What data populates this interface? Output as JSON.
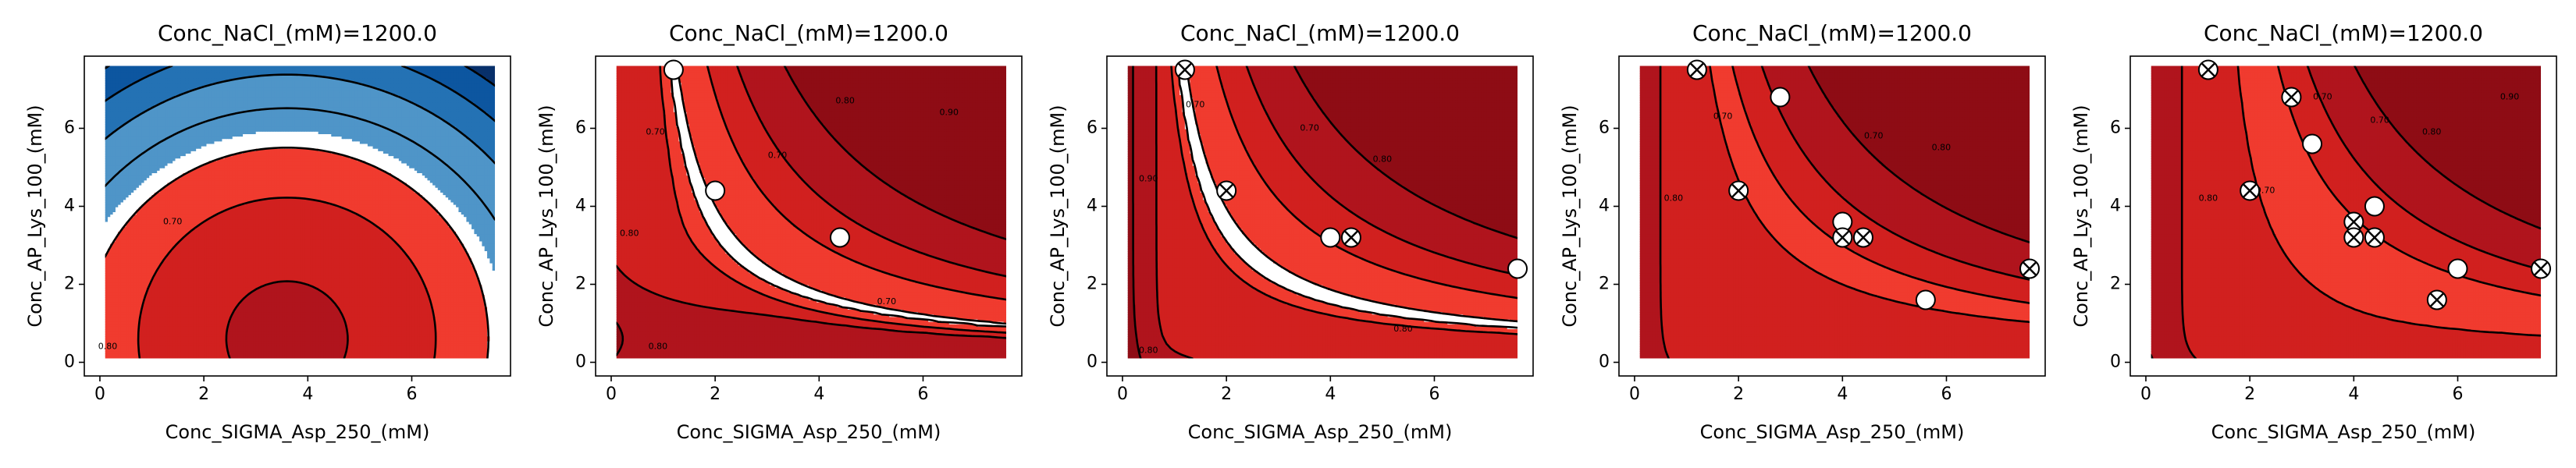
{
  "figure": {
    "palette": {
      "red_1": "#8e0c15",
      "red_2": "#b0141d",
      "red_3": "#d1201f",
      "red_4": "#f03b2f",
      "blue_1": "#4f95c8",
      "blue_2": "#2472b4",
      "blue_3": "#0d56a0",
      "blue_4": "#08306b",
      "marker_face": "#ffffff",
      "marker_edge": "#000000",
      "boundary_line": "#3b0a45"
    }
  },
  "chart_data": [
    {
      "type": "contour",
      "title": "Conc_NaCl_(mM)=1200.0",
      "xlabel": "Conc_SIGMA_Asp_250_(mM)",
      "ylabel": "Conc_AP_Lys_100_(mM)",
      "xlim": [
        -0.3,
        7.9
      ],
      "ylim": [
        -0.35,
        7.85
      ],
      "xticks": [
        0,
        2,
        4,
        6
      ],
      "yticks": [
        0,
        2,
        4,
        6
      ],
      "xtick_labels": [
        "0",
        "2",
        "4",
        "6"
      ],
      "ytick_labels": [
        "0",
        "2",
        "4",
        "6"
      ],
      "contour_labels": [
        {
          "text": "0.70",
          "x": 1.4,
          "y": 3.6
        },
        {
          "text": "0.80",
          "x": 0.15,
          "y": 0.4
        }
      ],
      "points": []
    },
    {
      "type": "contour",
      "title": "Conc_NaCl_(mM)=1200.0",
      "xlabel": "Conc_SIGMA_Asp_250_(mM)",
      "ylabel": "Conc_AP_Lys_100_(mM)",
      "xlim": [
        -0.3,
        7.9
      ],
      "ylim": [
        -0.35,
        7.85
      ],
      "xticks": [
        0,
        2,
        4,
        6
      ],
      "yticks": [
        0,
        2,
        4,
        6
      ],
      "xtick_labels": [
        "0",
        "2",
        "4",
        "6"
      ],
      "ytick_labels": [
        "0",
        "2",
        "4",
        "6"
      ],
      "contour_labels": [
        {
          "text": "0.80",
          "x": 0.35,
          "y": 3.3
        },
        {
          "text": "0.70",
          "x": 5.3,
          "y": 1.55
        },
        {
          "text": "0.80",
          "x": 0.9,
          "y": 0.4
        },
        {
          "text": "0.70",
          "x": 0.85,
          "y": 5.9
        },
        {
          "text": "0.70",
          "x": 3.2,
          "y": 5.3
        },
        {
          "text": "0.80",
          "x": 4.5,
          "y": 6.7
        },
        {
          "text": "0.90",
          "x": 6.5,
          "y": 6.4
        }
      ],
      "points": [
        {
          "x": 1.2,
          "y": 7.5,
          "crossed": false
        },
        {
          "x": 2.0,
          "y": 4.4,
          "crossed": false
        },
        {
          "x": 4.4,
          "y": 3.2,
          "crossed": false
        }
      ]
    },
    {
      "type": "contour",
      "title": "Conc_NaCl_(mM)=1200.0",
      "xlabel": "Conc_SIGMA_Asp_250_(mM)",
      "ylabel": "Conc_AP_Lys_100_(mM)",
      "xlim": [
        -0.3,
        7.9
      ],
      "ylim": [
        -0.35,
        7.85
      ],
      "xticks": [
        0,
        2,
        4,
        6
      ],
      "yticks": [
        0,
        2,
        4,
        6
      ],
      "xtick_labels": [
        "0",
        "2",
        "4",
        "6"
      ],
      "ytick_labels": [
        "0",
        "2",
        "4",
        "6"
      ],
      "contour_labels": [
        {
          "text": "0.90",
          "x": 0.5,
          "y": 4.7
        },
        {
          "text": "0.80",
          "x": 5.4,
          "y": 0.85
        },
        {
          "text": "0.80",
          "x": 0.5,
          "y": 0.3
        },
        {
          "text": "0.70",
          "x": 1.4,
          "y": 6.6
        },
        {
          "text": "0.70",
          "x": 3.6,
          "y": 6.0
        },
        {
          "text": "0.80",
          "x": 5.0,
          "y": 5.2
        }
      ],
      "points": [
        {
          "x": 1.2,
          "y": 7.5,
          "crossed": true
        },
        {
          "x": 2.0,
          "y": 4.4,
          "crossed": true
        },
        {
          "x": 4.0,
          "y": 3.2,
          "crossed": false
        },
        {
          "x": 4.4,
          "y": 3.2,
          "crossed": true
        },
        {
          "x": 7.6,
          "y": 2.4,
          "crossed": false
        }
      ]
    },
    {
      "type": "contour",
      "title": "Conc_NaCl_(mM)=1200.0",
      "xlabel": "Conc_SIGMA_Asp_250_(mM)",
      "ylabel": "Conc_AP_Lys_100_(mM)",
      "xlim": [
        -0.3,
        7.9
      ],
      "ylim": [
        -0.35,
        7.85
      ],
      "xticks": [
        0,
        2,
        4,
        6
      ],
      "yticks": [
        0,
        2,
        4,
        6
      ],
      "xtick_labels": [
        "0",
        "2",
        "4",
        "6"
      ],
      "ytick_labels": [
        "0",
        "2",
        "4",
        "6"
      ],
      "contour_labels": [
        {
          "text": "0.80",
          "x": 0.75,
          "y": 4.2
        },
        {
          "text": "0.70",
          "x": 1.7,
          "y": 6.3
        },
        {
          "text": "0.70",
          "x": 4.6,
          "y": 5.8
        },
        {
          "text": "0.80",
          "x": 5.9,
          "y": 5.5
        }
      ],
      "points": [
        {
          "x": 1.2,
          "y": 7.5,
          "crossed": true
        },
        {
          "x": 2.0,
          "y": 4.4,
          "crossed": true
        },
        {
          "x": 2.8,
          "y": 6.8,
          "crossed": false
        },
        {
          "x": 4.0,
          "y": 3.6,
          "crossed": false
        },
        {
          "x": 4.0,
          "y": 3.2,
          "crossed": true
        },
        {
          "x": 4.4,
          "y": 3.2,
          "crossed": true
        },
        {
          "x": 5.6,
          "y": 1.6,
          "crossed": false
        },
        {
          "x": 7.6,
          "y": 2.4,
          "crossed": true
        }
      ]
    },
    {
      "type": "contour",
      "title": "Conc_NaCl_(mM)=1200.0",
      "xlabel": "Conc_SIGMA_Asp_250_(mM)",
      "ylabel": "Conc_AP_Lys_100_(mM)",
      "xlim": [
        -0.3,
        7.9
      ],
      "ylim": [
        -0.35,
        7.85
      ],
      "xticks": [
        0,
        2,
        4,
        6
      ],
      "yticks": [
        0,
        2,
        4,
        6
      ],
      "xtick_labels": [
        "0",
        "2",
        "4",
        "6"
      ],
      "ytick_labels": [
        "0",
        "2",
        "4",
        "6"
      ],
      "contour_labels": [
        {
          "text": "0.80",
          "x": 1.2,
          "y": 4.2
        },
        {
          "text": "0.70",
          "x": 2.3,
          "y": 4.4
        },
        {
          "text": "0.70",
          "x": 3.4,
          "y": 6.8
        },
        {
          "text": "0.70",
          "x": 4.5,
          "y": 6.2
        },
        {
          "text": "0.80",
          "x": 5.5,
          "y": 5.9
        },
        {
          "text": "0.90",
          "x": 7.0,
          "y": 6.8
        }
      ],
      "points": [
        {
          "x": 1.2,
          "y": 7.5,
          "crossed": true
        },
        {
          "x": 2.0,
          "y": 4.4,
          "crossed": true
        },
        {
          "x": 2.8,
          "y": 6.8,
          "crossed": true
        },
        {
          "x": 3.2,
          "y": 5.6,
          "crossed": false
        },
        {
          "x": 4.0,
          "y": 3.6,
          "crossed": true
        },
        {
          "x": 4.0,
          "y": 3.2,
          "crossed": true
        },
        {
          "x": 4.4,
          "y": 4.0,
          "crossed": false
        },
        {
          "x": 4.4,
          "y": 3.2,
          "crossed": true
        },
        {
          "x": 5.6,
          "y": 1.6,
          "crossed": true
        },
        {
          "x": 6.0,
          "y": 2.4,
          "crossed": false
        },
        {
          "x": 7.6,
          "y": 2.4,
          "crossed": true
        }
      ]
    }
  ]
}
